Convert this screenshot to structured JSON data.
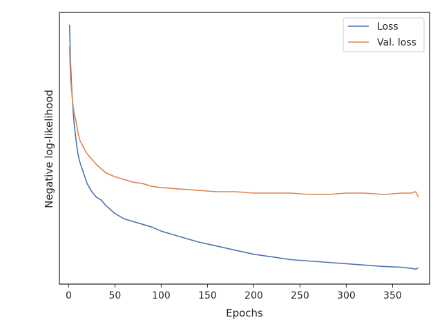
{
  "chart_data": {
    "type": "line",
    "title": "",
    "xlabel": "Epochs",
    "ylabel": "Negative log-likelihood",
    "xlim": [
      -10,
      390
    ],
    "ylim": [
      0.0,
      1.0
    ],
    "y_tick_labels_shown": false,
    "xticks": [
      0,
      50,
      100,
      150,
      200,
      250,
      300,
      350
    ],
    "grid": false,
    "legend_position": "top-right",
    "series": [
      {
        "name": "Loss",
        "color": "#4c72b0",
        "x": [
          1,
          2,
          3,
          4,
          5,
          6,
          8,
          10,
          12,
          15,
          18,
          20,
          25,
          30,
          35,
          40,
          50,
          60,
          70,
          80,
          90,
          100,
          120,
          140,
          160,
          180,
          200,
          220,
          240,
          260,
          280,
          300,
          320,
          340,
          360,
          370,
          375,
          378
        ],
        "values": [
          0.955,
          0.82,
          0.74,
          0.68,
          0.63,
          0.59,
          0.53,
          0.48,
          0.45,
          0.42,
          0.39,
          0.37,
          0.34,
          0.32,
          0.31,
          0.29,
          0.26,
          0.24,
          0.23,
          0.22,
          0.21,
          0.195,
          0.175,
          0.155,
          0.14,
          0.125,
          0.11,
          0.1,
          0.09,
          0.085,
          0.08,
          0.075,
          0.07,
          0.065,
          0.062,
          0.058,
          0.055,
          0.06
        ]
      },
      {
        "name": "Val. loss",
        "color": "#dd8452",
        "x": [
          1,
          2,
          3,
          4,
          5,
          6,
          8,
          10,
          12,
          15,
          18,
          20,
          25,
          30,
          35,
          40,
          50,
          60,
          70,
          80,
          90,
          100,
          120,
          140,
          160,
          180,
          200,
          220,
          240,
          260,
          280,
          300,
          320,
          340,
          360,
          370,
          375,
          378
        ],
        "values": [
          0.875,
          0.76,
          0.72,
          0.68,
          0.65,
          0.63,
          0.6,
          0.56,
          0.53,
          0.51,
          0.49,
          0.48,
          0.46,
          0.44,
          0.425,
          0.41,
          0.395,
          0.385,
          0.375,
          0.37,
          0.36,
          0.355,
          0.35,
          0.345,
          0.34,
          0.34,
          0.335,
          0.335,
          0.335,
          0.33,
          0.33,
          0.335,
          0.335,
          0.33,
          0.335,
          0.335,
          0.34,
          0.32
        ]
      }
    ]
  }
}
